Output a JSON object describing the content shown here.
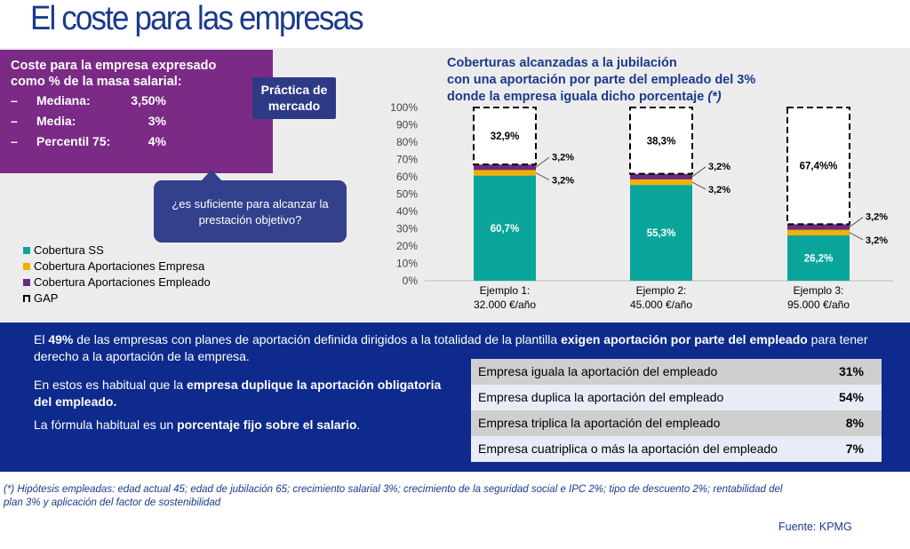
{
  "header": {
    "title": "El coste para las empresas"
  },
  "cost_box": {
    "title_line1": "Coste para la empresa expresado",
    "title_line2": "como % de la masa salarial:",
    "stats": [
      {
        "dash": "–",
        "label": "Mediana:",
        "value": "3,50%"
      },
      {
        "dash": "–",
        "label": "Media:",
        "value": "3%"
      },
      {
        "dash": "–",
        "label": "Percentil 75:",
        "value": "4%"
      }
    ]
  },
  "practice_badge": {
    "line1": "Práctica de",
    "line2": "mercado"
  },
  "question_bubble": {
    "line1": "¿es suficiente para alcanzar la",
    "line2": "prestación objetivo?"
  },
  "legend": [
    {
      "label": "Cobertura SS",
      "color": "#0aa59a"
    },
    {
      "label": "Cobertura Aportaciones Empresa",
      "color": "#f2b000"
    },
    {
      "label": "Cobertura Aportaciones Empleado",
      "color": "#6a2a7e"
    },
    {
      "label": "GAP",
      "color": "#000000"
    }
  ],
  "chart_title": {
    "line1": "Coberturas alcanzadas a la jubilación",
    "line2": "con una aportación por parte del empleado del 3%",
    "line3": "donde la empresa iguala dicho porcentaje",
    "line3_suffix": "(*)"
  },
  "chart_data": {
    "type": "bar",
    "stacked": true,
    "categories": [
      [
        "Ejemplo 1:",
        "32.000 €/año"
      ],
      [
        "Ejemplo 2:",
        "45.000 €/año"
      ],
      [
        "Ejemplo 3:",
        "95.000 €/año"
      ]
    ],
    "series": [
      {
        "name": "Cobertura SS",
        "values": [
          60.7,
          55.3,
          26.2
        ],
        "labels": [
          "60,7%",
          "55,3%",
          "26,2%"
        ],
        "color": "#0aa59a"
      },
      {
        "name": "Cobertura Aportaciones Empresa",
        "values": [
          3.2,
          3.2,
          3.2
        ],
        "labels": [
          "3,2%",
          "3,2%",
          "3,2%"
        ],
        "color": "#f2b000"
      },
      {
        "name": "Cobertura Aportaciones Empleado",
        "values": [
          3.2,
          3.2,
          3.2
        ],
        "labels": [
          "3,2%",
          "3,2%",
          "3,2%"
        ],
        "color": "#6a2a7e"
      },
      {
        "name": "GAP",
        "values": [
          32.9,
          38.3,
          67.4
        ],
        "labels": [
          "32,9%",
          "38,3%",
          "67,4%%"
        ],
        "style": "dashed-outline"
      }
    ],
    "y_ticks": [
      "0%",
      "10%",
      "20%",
      "30%",
      "40%",
      "50%",
      "60%",
      "70%",
      "80%",
      "90%",
      "100%"
    ],
    "ylim": [
      0,
      100
    ],
    "legend_position": "left"
  },
  "info_panel": {
    "p1": [
      {
        "t": "El ",
        "b": false
      },
      {
        "t": "49%",
        "b": true
      },
      {
        "t": " de las empresas con planes de aportación definida dirigidos a la totalidad de la plantilla ",
        "b": false
      },
      {
        "t": "exigen aportación por parte del empleado",
        "b": true
      },
      {
        "t": " para tener derecho a la aportación de la empresa.",
        "b": false
      }
    ],
    "p2": [
      {
        "t": "En estos es habitual que la ",
        "b": false
      },
      {
        "t": "empresa duplique la aportación obligatoria del empleado.",
        "b": true
      }
    ],
    "p3": [
      {
        "t": "La fórmula habitual es un ",
        "b": false
      },
      {
        "t": "porcentaje fijo sobre el salario",
        "b": true
      },
      {
        "t": ".",
        "b": false
      }
    ]
  },
  "rates_table": [
    {
      "label": "Empresa iguala la aportación del empleado",
      "value": "31%",
      "bg": "#cfcfcf"
    },
    {
      "label": "Empresa duplica la aportación del empleado",
      "value": "54%",
      "bg": "#e9ecf6"
    },
    {
      "label": "Empresa triplica la aportación del empleado",
      "value": "8%",
      "bg": "#cfcfcf"
    },
    {
      "label": "Empresa cuatriplica o más la aportación del empleado",
      "value": "7%",
      "bg": "#e9ecf6"
    }
  ],
  "footnote": {
    "line1": "(*) Hipótesis empleadas: edad actual 45; edad de jubilación 65; crecimiento salarial 3%; crecimiento de la seguridad social e IPC 2%; tipo de descuento 2%; rentabilidad del",
    "line2": "plan 3% y aplicación del factor de sostenibilidad"
  },
  "source": "Fuente: KPMG"
}
